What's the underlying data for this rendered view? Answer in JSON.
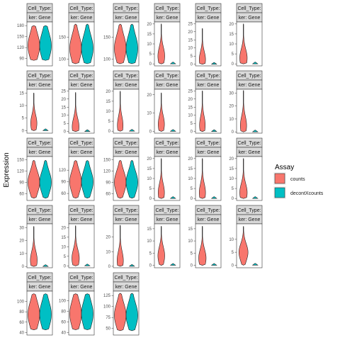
{
  "chart_data": {
    "type": "violin",
    "ylabel": "Expression",
    "xlabel": "",
    "facet_strip_labels": [
      "Cell_Type:",
      "ker: Gene"
    ],
    "legend": {
      "title": "Assay",
      "position": "right",
      "entries": [
        {
          "label": "counts",
          "color": "#F8766D"
        },
        {
          "label": "decontXcounts",
          "color": "#00BFC4"
        }
      ]
    },
    "panels": [
      {
        "ylim": [
          70,
          190
        ],
        "ticks": [
          90,
          120,
          150,
          180
        ],
        "kind": "broad",
        "center": 125,
        "spread": 35,
        "min": 85,
        "max": 180
      },
      {
        "ylim": [
          85,
          185
        ],
        "ticks": [
          100,
          150
        ],
        "kind": "broad",
        "center": 125,
        "spread": 30,
        "min": 90,
        "max": 180
      },
      {
        "ylim": [
          85,
          185
        ],
        "ticks": [
          100,
          150
        ],
        "kind": "broad",
        "center": 125,
        "spread": 30,
        "min": 90,
        "max": 180
      },
      {
        "ylim": [
          -1,
          21
        ],
        "ticks": [
          0,
          5,
          10,
          15,
          20
        ],
        "kind": "spike",
        "top": 20,
        "bulge": 4,
        "width": 0.55
      },
      {
        "ylim": [
          -1,
          26
        ],
        "ticks": [
          0,
          5,
          10,
          15,
          20,
          25
        ],
        "kind": "spike",
        "top": 22,
        "bulge": 3,
        "width": 0.5
      },
      {
        "ylim": [
          -1,
          21
        ],
        "ticks": [
          0,
          5,
          10,
          15,
          20
        ],
        "kind": "spike",
        "top": 20,
        "bulge": 3,
        "width": 0.6
      },
      {
        "ylim": [
          -1,
          16.5
        ],
        "ticks": [
          0,
          5,
          10,
          15
        ],
        "kind": "spike",
        "top": 15,
        "bulge": 3,
        "width": 0.5
      },
      {
        "ylim": [
          -1,
          26
        ],
        "ticks": [
          0,
          5,
          10,
          15,
          20,
          25
        ],
        "kind": "spike",
        "top": 24,
        "bulge": 3,
        "width": 0.55
      },
      {
        "ylim": [
          -1,
          21
        ],
        "ticks": [
          0,
          5,
          10,
          15,
          20
        ],
        "kind": "spike",
        "top": 20,
        "bulge": 3,
        "width": 0.45
      },
      {
        "ylim": [
          -1,
          23
        ],
        "ticks": [
          0,
          10,
          20
        ],
        "kind": "spike",
        "top": 21,
        "bulge": 4,
        "width": 0.5
      },
      {
        "ylim": [
          -1,
          26
        ],
        "ticks": [
          0,
          5,
          10,
          15,
          20,
          25
        ],
        "kind": "spike",
        "top": 25,
        "bulge": 4,
        "width": 0.45
      },
      {
        "ylim": [
          -1,
          33
        ],
        "ticks": [
          0,
          10,
          20,
          30
        ],
        "kind": "spike",
        "top": 32,
        "bulge": 5,
        "width": 0.5
      },
      {
        "ylim": [
          42,
          158
        ],
        "ticks": [
          60,
          90,
          120,
          150
        ],
        "kind": "broad",
        "center": 90,
        "spread": 30,
        "min": 48,
        "max": 148
      },
      {
        "ylim": [
          42,
          155
        ],
        "ticks": [
          60,
          90,
          120
        ],
        "kind": "broad",
        "center": 90,
        "spread": 30,
        "min": 48,
        "max": 145
      },
      {
        "ylim": [
          42,
          158
        ],
        "ticks": [
          60,
          90,
          120,
          150
        ],
        "kind": "broad",
        "center": 90,
        "spread": 30,
        "min": 48,
        "max": 148
      },
      {
        "ylim": [
          -1,
          21
        ],
        "ticks": [
          0,
          5,
          10,
          15,
          20
        ],
        "kind": "spike",
        "top": 20,
        "bulge": 3,
        "width": 0.5
      },
      {
        "ylim": [
          -1,
          21
        ],
        "ticks": [
          0,
          5,
          10,
          15,
          20
        ],
        "kind": "spike",
        "top": 20,
        "bulge": 3,
        "width": 0.5
      },
      {
        "ylim": [
          -1,
          21
        ],
        "ticks": [
          0,
          5,
          10,
          15,
          20
        ],
        "kind": "spike",
        "top": 20,
        "bulge": 3,
        "width": 0.6
      },
      {
        "ylim": [
          -1,
          33
        ],
        "ticks": [
          0,
          10,
          20,
          30
        ],
        "kind": "spike",
        "top": 31,
        "bulge": 5,
        "width": 0.55
      },
      {
        "ylim": [
          -1,
          22
        ],
        "ticks": [
          0,
          5,
          10,
          15,
          20
        ],
        "kind": "spike",
        "top": 21,
        "bulge": 4,
        "width": 0.6
      },
      {
        "ylim": [
          -1,
          29
        ],
        "ticks": [
          0,
          10,
          20
        ],
        "kind": "spike",
        "top": 28,
        "bulge": 4,
        "width": 0.5
      },
      {
        "ylim": [
          -1,
          17
        ],
        "ticks": [
          0,
          5,
          10,
          15
        ],
        "kind": "spike",
        "top": 16,
        "bulge": 4,
        "width": 0.55
      },
      {
        "ylim": [
          -1,
          17
        ],
        "ticks": [
          0,
          5,
          10,
          15
        ],
        "kind": "spike",
        "top": 16,
        "bulge": 3,
        "width": 0.6
      },
      {
        "ylim": [
          -1,
          16
        ],
        "ticks": [
          0,
          5,
          10
        ],
        "kind": "spike",
        "top": 15,
        "bulge": 5,
        "width": 0.75
      },
      {
        "ylim": [
          35,
          120
        ],
        "ticks": [
          40,
          60,
          80,
          100
        ],
        "kind": "broad",
        "center": 75,
        "spread": 25,
        "min": 45,
        "max": 115
      },
      {
        "ylim": [
          35,
          118
        ],
        "ticks": [
          40,
          60,
          80,
          100
        ],
        "kind": "broad",
        "center": 75,
        "spread": 25,
        "min": 45,
        "max": 113
      },
      {
        "ylim": [
          35,
          135
        ],
        "ticks": [
          50,
          75,
          100,
          125
        ],
        "kind": "broad",
        "center": 80,
        "spread": 28,
        "min": 45,
        "max": 130
      }
    ]
  }
}
